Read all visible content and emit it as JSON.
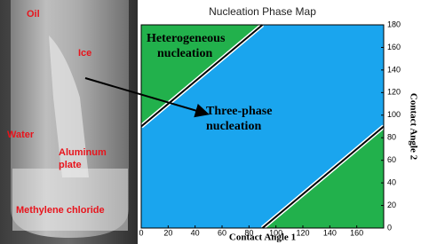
{
  "photo_labels": [
    "Oil",
    "Ice",
    "Water",
    [
      "Aluminum",
      "plate"
    ],
    "Methylene chloride"
  ],
  "chart_data": {
    "type": "phase-map",
    "title": "Nucleation Phase Map",
    "x_label": "Contact Angle 1",
    "y_label": "Contact Angle 2",
    "xlim": [
      0,
      180
    ],
    "ylim": [
      0,
      180
    ],
    "xticks": [
      0,
      20,
      40,
      60,
      80,
      100,
      120,
      140,
      160
    ],
    "yticks": [
      0,
      20,
      40,
      60,
      80,
      100,
      120,
      140,
      160,
      180
    ],
    "background_color": "#1aa5ee",
    "region_color": "#22b14c",
    "annotations": [
      [
        "Heterogeneous",
        "nucleation"
      ],
      [
        "Three-phase",
        "nucleation"
      ]
    ],
    "boundaries": [
      {
        "x": [
          0,
          90
        ],
        "y": [
          90,
          180
        ]
      },
      {
        "x": [
          90,
          180
        ],
        "y": [
          0,
          90
        ]
      }
    ]
  }
}
